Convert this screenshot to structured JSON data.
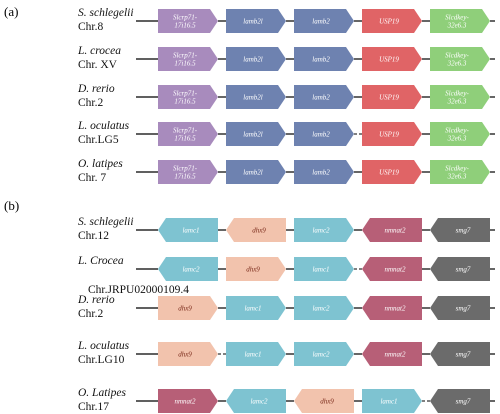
{
  "panels": [
    {
      "label": "(a)",
      "rows": [
        {
          "species": "S. schlegelii",
          "chromosome": "Chr.8",
          "genes": [
            {
              "name": "Slcrp71-\n17i16.5",
              "color": "#a88bbd",
              "dir": "right"
            },
            {
              "name": "lamb2l",
              "color": "#6e82b0",
              "dir": "right"
            },
            {
              "name": "lamb2",
              "color": "#6e82b0",
              "dir": "right"
            },
            {
              "name": "USP19",
              "color": "#e06466",
              "dir": "right"
            },
            {
              "name": "Slcdkey-\n32e6.3",
              "color": "#8fcf7a",
              "dir": "right"
            }
          ],
          "gaps": []
        },
        {
          "species": "L. crocea",
          "chromosome": "Chr. XV",
          "genes": [
            {
              "name": "Slcrp71-\n17i16.5",
              "color": "#a88bbd",
              "dir": "right"
            },
            {
              "name": "lamb2l",
              "color": "#6e82b0",
              "dir": "right"
            },
            {
              "name": "lamb2",
              "color": "#6e82b0",
              "dir": "right"
            },
            {
              "name": "USP19",
              "color": "#e06466",
              "dir": "right"
            },
            {
              "name": "Slcdkey-\n32e6.3",
              "color": "#8fcf7a",
              "dir": "right"
            }
          ],
          "gaps": []
        },
        {
          "species": "D. rerio",
          "chromosome": "Chr.2",
          "genes": [
            {
              "name": "Slcrp71-\n17i16.5",
              "color": "#a88bbd",
              "dir": "right"
            },
            {
              "name": "lamb2l",
              "color": "#6e82b0",
              "dir": "right"
            },
            {
              "name": "lamb2",
              "color": "#6e82b0",
              "dir": "right"
            },
            {
              "name": "USP19",
              "color": "#e06466",
              "dir": "right"
            },
            {
              "name": "Slcdkey-\n32e6.3",
              "color": "#8fcf7a",
              "dir": "right"
            }
          ],
          "gaps": []
        },
        {
          "species": "L. oculatus",
          "chromosome": "Chr.LG5",
          "genes": [
            {
              "name": "Slcrp71-\n17i16.5",
              "color": "#a88bbd",
              "dir": "right"
            },
            {
              "name": "lamb2l",
              "color": "#6e82b0",
              "dir": "right"
            },
            {
              "name": "lamb2",
              "color": "#6e82b0",
              "dir": "right"
            },
            {
              "name": "USP19",
              "color": "#e06466",
              "dir": "right"
            },
            {
              "name": "Slcdkey-\n32e6.3",
              "color": "#8fcf7a",
              "dir": "right"
            }
          ],
          "gaps": [
            3
          ]
        },
        {
          "species": "O. latipes",
          "chromosome": "Chr. 7",
          "genes": [
            {
              "name": "Slcrp71-\n17i16.5",
              "color": "#a88bbd",
              "dir": "right"
            },
            {
              "name": "lamb2l",
              "color": "#6e82b0",
              "dir": "right"
            },
            {
              "name": "lamb2",
              "color": "#6e82b0",
              "dir": "right"
            },
            {
              "name": "USP19",
              "color": "#e06466",
              "dir": "right"
            },
            {
              "name": "Slcdkey-\n32e6.3",
              "color": "#8fcf7a",
              "dir": "right"
            }
          ],
          "gaps": []
        }
      ]
    },
    {
      "label": "(b)",
      "rows": [
        {
          "species": "S. schlegelii",
          "chromosome": "Chr.12",
          "genes": [
            {
              "name": "lamc1",
              "color": "#7ec3d1",
              "dir": "left"
            },
            {
              "name": "dhx9",
              "color": "#f2c3ad",
              "dir": "left",
              "dark": true
            },
            {
              "name": "lamc2",
              "color": "#7ec3d1",
              "dir": "right"
            },
            {
              "name": "nmnat2",
              "color": "#b75f77",
              "dir": "left"
            },
            {
              "name": "smg7",
              "color": "#6b6b6b",
              "dir": "left"
            }
          ],
          "gaps": []
        },
        {
          "species": "L. Crocea",
          "chromosome": "Chr.JRPU02000109.4",
          "genes": [
            {
              "name": "lamc2",
              "color": "#7ec3d1",
              "dir": "left"
            },
            {
              "name": "dhx9",
              "color": "#f2c3ad",
              "dir": "right",
              "dark": true
            },
            {
              "name": "lamc1",
              "color": "#7ec3d1",
              "dir": "right"
            },
            {
              "name": "nmnat2",
              "color": "#b75f77",
              "dir": "left"
            },
            {
              "name": "smg7",
              "color": "#6b6b6b",
              "dir": "left"
            }
          ],
          "gaps": [
            3
          ]
        },
        {
          "species": "D. rerio",
          "chromosome": "Chr.2",
          "genes": [
            {
              "name": "dhx9",
              "color": "#f2c3ad",
              "dir": "right",
              "dark": true
            },
            {
              "name": "lamc1",
              "color": "#7ec3d1",
              "dir": "right"
            },
            {
              "name": "lamc2",
              "color": "#7ec3d1",
              "dir": "right"
            },
            {
              "name": "nmnat2",
              "color": "#b75f77",
              "dir": "left"
            },
            {
              "name": "smg7",
              "color": "#6b6b6b",
              "dir": "left"
            }
          ],
          "gaps": []
        },
        {
          "species": "L. oculatus",
          "chromosome": "Chr.LG10",
          "genes": [
            {
              "name": "dhx9",
              "color": "#f2c3ad",
              "dir": "right",
              "dark": true
            },
            {
              "name": "lamc1",
              "color": "#7ec3d1",
              "dir": "right"
            },
            {
              "name": "lamc2",
              "color": "#7ec3d1",
              "dir": "right"
            },
            {
              "name": "nmnat2",
              "color": "#b75f77",
              "dir": "left"
            },
            {
              "name": "smg7",
              "color": "#6b6b6b",
              "dir": "left"
            }
          ],
          "gaps": [
            1
          ]
        },
        {
          "species": "O. Latipes",
          "chromosome": "Chr.17",
          "genes": [
            {
              "name": "nmnat2",
              "color": "#b75f77",
              "dir": "right"
            },
            {
              "name": "lamc2",
              "color": "#7ec3d1",
              "dir": "left"
            },
            {
              "name": "dhx9",
              "color": "#f2c3ad",
              "dir": "left",
              "dark": true
            },
            {
              "name": "lamc1",
              "color": "#7ec3d1",
              "dir": "right"
            },
            {
              "name": "smg7",
              "color": "#6b6b6b",
              "dir": "left"
            }
          ],
          "gaps": [
            4
          ]
        }
      ]
    }
  ]
}
